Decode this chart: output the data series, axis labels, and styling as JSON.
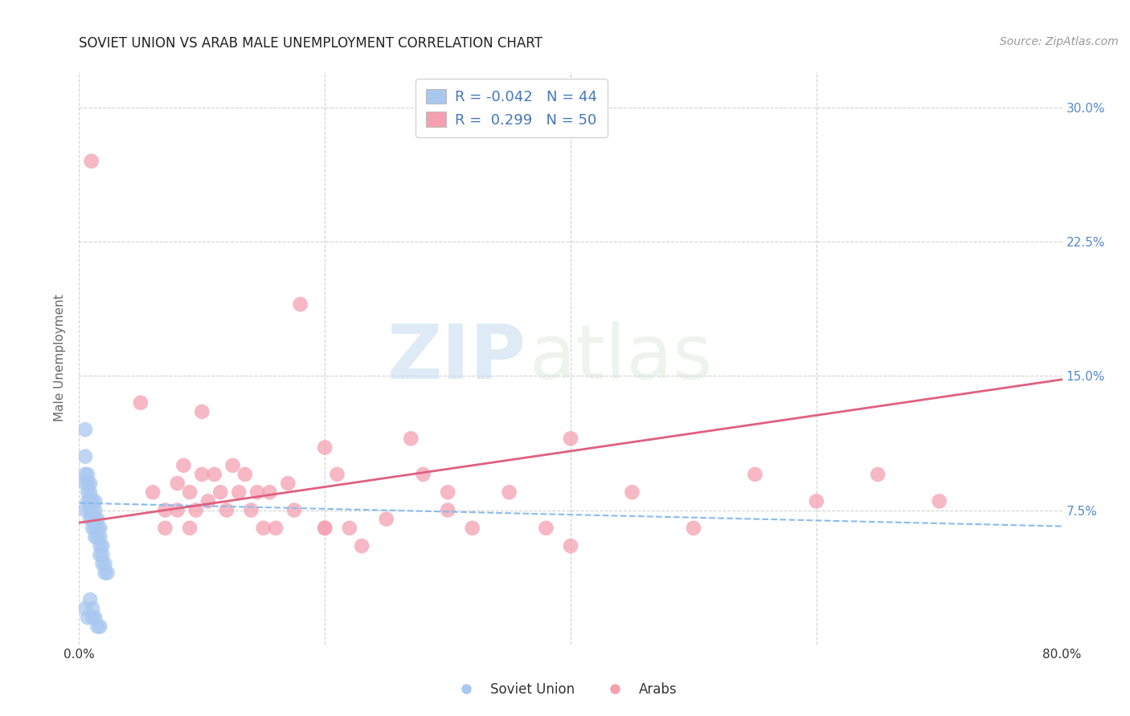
{
  "title": "SOVIET UNION VS ARAB MALE UNEMPLOYMENT CORRELATION CHART",
  "source": "Source: ZipAtlas.com",
  "ylabel": "Male Unemployment",
  "xlim": [
    0.0,
    0.8
  ],
  "ylim": [
    0.0,
    0.32
  ],
  "yticks": [
    0.0,
    0.075,
    0.15,
    0.225,
    0.3
  ],
  "ytick_labels": [
    "",
    "7.5%",
    "15.0%",
    "22.5%",
    "30.0%"
  ],
  "xticks": [
    0.0,
    0.2,
    0.4,
    0.6,
    0.8
  ],
  "xtick_labels": [
    "0.0%",
    "",
    "",
    "",
    "80.0%"
  ],
  "soviet_R": "-0.042",
  "soviet_N": "44",
  "arab_R": "0.299",
  "arab_N": "50",
  "soviet_color": "#a8c8f0",
  "arab_color": "#f4a0b0",
  "soviet_scatter_x": [
    0.005,
    0.005,
    0.005,
    0.005,
    0.005,
    0.007,
    0.007,
    0.007,
    0.007,
    0.009,
    0.009,
    0.009,
    0.009,
    0.009,
    0.011,
    0.011,
    0.011,
    0.011,
    0.013,
    0.013,
    0.013,
    0.013,
    0.013,
    0.015,
    0.015,
    0.015,
    0.017,
    0.017,
    0.017,
    0.017,
    0.019,
    0.019,
    0.019,
    0.021,
    0.021,
    0.023,
    0.005,
    0.007,
    0.009,
    0.011,
    0.011,
    0.013,
    0.015,
    0.017
  ],
  "soviet_scatter_y": [
    0.12,
    0.105,
    0.095,
    0.09,
    0.075,
    0.095,
    0.09,
    0.085,
    0.08,
    0.09,
    0.085,
    0.08,
    0.075,
    0.07,
    0.08,
    0.075,
    0.07,
    0.065,
    0.08,
    0.075,
    0.07,
    0.065,
    0.06,
    0.07,
    0.065,
    0.06,
    0.065,
    0.06,
    0.055,
    0.05,
    0.055,
    0.05,
    0.045,
    0.045,
    0.04,
    0.04,
    0.02,
    0.015,
    0.025,
    0.02,
    0.015,
    0.015,
    0.01,
    0.01
  ],
  "arab_scatter_x": [
    0.01,
    0.05,
    0.06,
    0.07,
    0.07,
    0.08,
    0.08,
    0.085,
    0.09,
    0.09,
    0.095,
    0.1,
    0.1,
    0.105,
    0.11,
    0.115,
    0.12,
    0.125,
    0.13,
    0.135,
    0.14,
    0.145,
    0.15,
    0.155,
    0.16,
    0.17,
    0.175,
    0.18,
    0.2,
    0.2,
    0.21,
    0.22,
    0.23,
    0.25,
    0.27,
    0.28,
    0.3,
    0.32,
    0.35,
    0.38,
    0.4,
    0.45,
    0.5,
    0.55,
    0.6,
    0.65,
    0.7,
    0.2,
    0.3,
    0.4
  ],
  "arab_scatter_y": [
    0.27,
    0.135,
    0.085,
    0.075,
    0.065,
    0.09,
    0.075,
    0.1,
    0.065,
    0.085,
    0.075,
    0.095,
    0.13,
    0.08,
    0.095,
    0.085,
    0.075,
    0.1,
    0.085,
    0.095,
    0.075,
    0.085,
    0.065,
    0.085,
    0.065,
    0.09,
    0.075,
    0.19,
    0.11,
    0.065,
    0.095,
    0.065,
    0.055,
    0.07,
    0.115,
    0.095,
    0.085,
    0.065,
    0.085,
    0.065,
    0.055,
    0.085,
    0.065,
    0.095,
    0.08,
    0.095,
    0.08,
    0.065,
    0.075,
    0.115
  ],
  "soviet_trend_x": [
    0.0,
    0.8
  ],
  "soviet_trend_y": [
    0.079,
    0.066
  ],
  "arab_trend_x": [
    0.0,
    0.8
  ],
  "arab_trend_y": [
    0.068,
    0.148
  ],
  "watermark_zip": "ZIP",
  "watermark_atlas": "atlas",
  "background_color": "#ffffff",
  "grid_color": "#cccccc",
  "title_color": "#222222",
  "axis_label_color": "#666666",
  "tick_color_right": "#5588cc",
  "legend_text_color": "#4477bb"
}
